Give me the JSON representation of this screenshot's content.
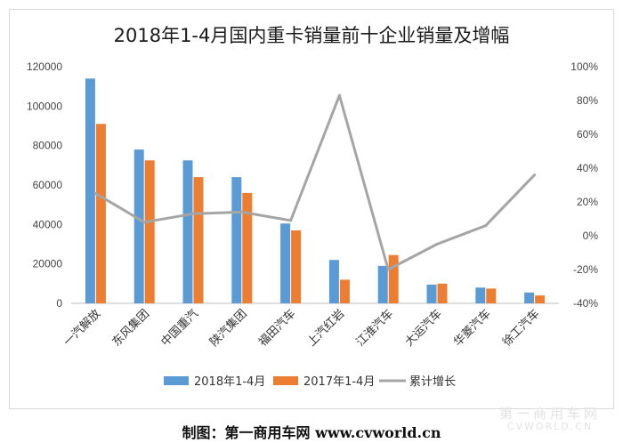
{
  "chart_data": {
    "type": "bar",
    "title": "2018年1-4月国内重卡销量前十企业销量及增幅",
    "categories": [
      "一汽解放",
      "东风集团",
      "中国重汽",
      "陕汽集团",
      "福田汽车",
      "上汽红岩",
      "江淮汽车",
      "大运汽车",
      "华菱汽车",
      "徐工汽车"
    ],
    "series": [
      {
        "name": "2018年1-4月",
        "type": "bar",
        "axis": "left",
        "color": "#5b9bd5",
        "values": [
          114000,
          78000,
          72500,
          64000,
          40500,
          22000,
          19000,
          9500,
          8000,
          5500
        ]
      },
      {
        "name": "2017年1-4月",
        "type": "bar",
        "axis": "left",
        "color": "#ed7d31",
        "values": [
          91000,
          72500,
          64000,
          56000,
          37000,
          12000,
          24500,
          10000,
          7500,
          4000
        ]
      },
      {
        "name": "累计增长",
        "type": "line",
        "axis": "right",
        "color": "#a5a5a5",
        "values": [
          25,
          8,
          13,
          14,
          9,
          83,
          -20,
          -5,
          6,
          36
        ]
      }
    ],
    "y_left": {
      "min": 0,
      "max": 120000,
      "step": 20000,
      "ticks": [
        "0",
        "20000",
        "40000",
        "60000",
        "80000",
        "100000",
        "120000"
      ]
    },
    "y_right": {
      "min": -40,
      "max": 100,
      "step": 20,
      "unit": "%",
      "ticks": [
        "-40%",
        "-20%",
        "0%",
        "20%",
        "40%",
        "60%",
        "80%",
        "100%"
      ]
    },
    "grid": false,
    "legend_position": "bottom"
  },
  "footer": {
    "credit": "制图：第一商用车网 www.cvworld.cn",
    "watermark_cn": "第一商用车网",
    "watermark_en": "CVWORLD.CN"
  }
}
